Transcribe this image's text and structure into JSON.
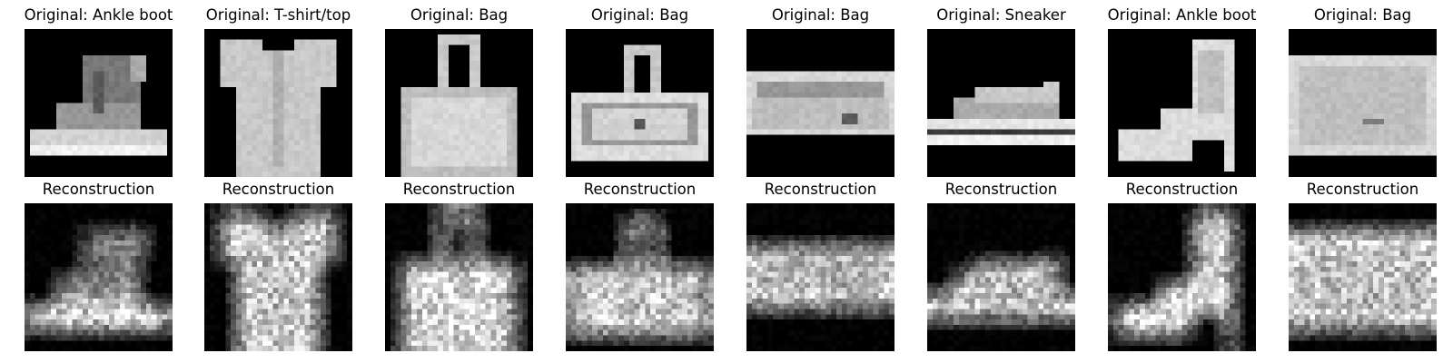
{
  "figure": {
    "rows": [
      {
        "row": "original",
        "panels": [
          {
            "title": "Original: Ankle boot",
            "item": "ankle-boot"
          },
          {
            "title": "Original: T-shirt/top",
            "item": "tshirt"
          },
          {
            "title": "Original: Bag",
            "item": "bag-tote"
          },
          {
            "title": "Original: Bag",
            "item": "bag-handle"
          },
          {
            "title": "Original: Bag",
            "item": "bag-flat"
          },
          {
            "title": "Original: Sneaker",
            "item": "sneaker"
          },
          {
            "title": "Original: Ankle boot",
            "item": "heel-boot"
          },
          {
            "title": "Original: Bag",
            "item": "bag-rect"
          }
        ]
      },
      {
        "row": "reconstruction",
        "panels": [
          {
            "title": "Reconstruction",
            "item": "ankle-boot"
          },
          {
            "title": "Reconstruction",
            "item": "tshirt"
          },
          {
            "title": "Reconstruction",
            "item": "bag-tote"
          },
          {
            "title": "Reconstruction",
            "item": "bag-handle"
          },
          {
            "title": "Reconstruction",
            "item": "bag-flat"
          },
          {
            "title": "Reconstruction",
            "item": "sneaker"
          },
          {
            "title": "Reconstruction",
            "item": "heel-boot"
          },
          {
            "title": "Reconstruction",
            "item": "bag-rect"
          }
        ]
      }
    ]
  }
}
